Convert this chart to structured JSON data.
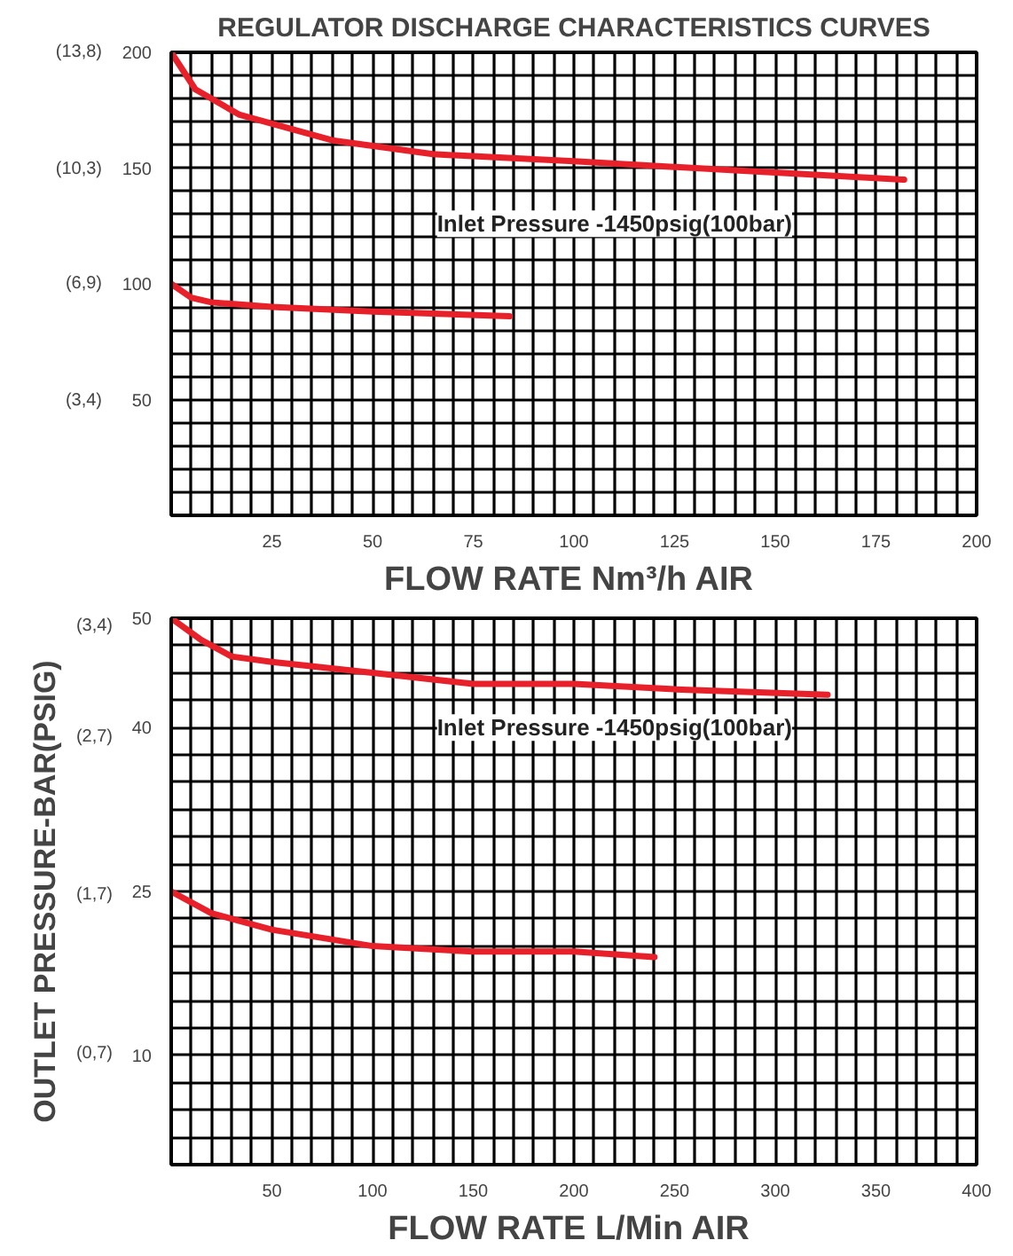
{
  "chart_data": [
    {
      "type": "line",
      "title": "REGULATOR DISCHARGE CHARACTERISTICS CURVES",
      "xlabel": "FLOW RATE  Nm³/h AIR",
      "annotations": [
        "Inlet Pressure -1450psig(100bar)"
      ],
      "grid": true,
      "line_style": "solid",
      "xlim": [
        0,
        200
      ],
      "ylim": [
        0,
        200
      ],
      "y2lim": [
        0,
        13.8
      ],
      "xticks": [
        {
          "value": 5,
          "label": null
        },
        {
          "value": 10,
          "label": null
        },
        {
          "value": 15,
          "label": null
        },
        {
          "value": 20,
          "label": null
        },
        25,
        {
          "value": 30,
          "label": null
        },
        {
          "value": 35,
          "label": null
        },
        {
          "value": 40,
          "label": null
        },
        {
          "value": 45,
          "label": null
        },
        50,
        {
          "value": 55,
          "label": null
        },
        {
          "value": 60,
          "label": null
        },
        {
          "value": 65,
          "label": null
        },
        {
          "value": 70,
          "label": null
        },
        75,
        {
          "value": 80,
          "label": null
        },
        {
          "value": 85,
          "label": null
        },
        {
          "value": 90,
          "label": null
        },
        {
          "value": 95,
          "label": null
        },
        100,
        {
          "value": 105,
          "label": null
        },
        {
          "value": 110,
          "label": null
        },
        {
          "value": 115,
          "label": null
        },
        {
          "value": 120,
          "label": null
        },
        125,
        {
          "value": 130,
          "label": null
        },
        {
          "value": 135,
          "label": null
        },
        {
          "value": 140,
          "label": null
        },
        {
          "value": 145,
          "label": null
        },
        150,
        {
          "value": 155,
          "label": null
        },
        {
          "value": 160,
          "label": null
        },
        {
          "value": 165,
          "label": null
        },
        {
          "value": 170,
          "label": null
        },
        175,
        {
          "value": 180,
          "label": null
        },
        {
          "value": 185,
          "label": null
        },
        {
          "value": 190,
          "label": null
        },
        {
          "value": 195,
          "label": null
        },
        200
      ],
      "yticks": [
        {
          "value": 10,
          "label": null
        },
        {
          "value": 20,
          "label": null
        },
        {
          "value": 30,
          "label": null
        },
        {
          "value": 40,
          "label": null
        },
        50,
        {
          "value": 60,
          "label": null
        },
        {
          "value": 70,
          "label": null
        },
        {
          "value": 80,
          "label": null
        },
        {
          "value": 90,
          "label": null
        },
        100,
        {
          "value": 110,
          "label": null
        },
        {
          "value": 120,
          "label": null
        },
        {
          "value": 130,
          "label": null
        },
        {
          "value": 140,
          "label": null
        },
        150,
        {
          "value": 160,
          "label": null
        },
        {
          "value": 170,
          "label": null
        },
        {
          "value": 180,
          "label": null
        },
        {
          "value": 190,
          "label": null
        },
        200
      ],
      "y2ticks": [
        {
          "value": 3.4,
          "label": "(3,4)"
        },
        {
          "value": 6.9,
          "label": "(6,9)"
        },
        {
          "value": 10.3,
          "label": "(10,3)"
        },
        {
          "value": 13.8,
          "label": "(13,8)"
        }
      ],
      "series": [
        {
          "color": "#e8202a",
          "x": [
            0,
            6,
            17,
            40,
            65,
            100,
            140,
            182
          ],
          "values": [
            200,
            184,
            173,
            162,
            156,
            153,
            149,
            145
          ]
        },
        {
          "color": "#e8202a",
          "x": [
            0,
            5,
            10,
            25,
            50,
            84
          ],
          "values": [
            100,
            94,
            92,
            90,
            88,
            86
          ]
        }
      ]
    },
    {
      "type": "line",
      "xlabel": "FLOW RATE  L/Min AIR",
      "y2label": "OUTLET PRESSURE-BAR(PSIG)",
      "annotations": [
        "Inlet Pressure -1450psig(100bar)"
      ],
      "grid": true,
      "line_style": "solid",
      "xlim": [
        0,
        400
      ],
      "ylim": [
        0,
        50
      ],
      "y2lim": [
        0,
        3.45
      ],
      "xticks": [
        {
          "value": 10,
          "label": null
        },
        {
          "value": 20,
          "label": null
        },
        {
          "value": 30,
          "label": null
        },
        {
          "value": 40,
          "label": null
        },
        50,
        {
          "value": 60,
          "label": null
        },
        {
          "value": 70,
          "label": null
        },
        {
          "value": 80,
          "label": null
        },
        {
          "value": 90,
          "label": null
        },
        100,
        {
          "value": 110,
          "label": null
        },
        {
          "value": 120,
          "label": null
        },
        {
          "value": 130,
          "label": null
        },
        {
          "value": 140,
          "label": null
        },
        150,
        {
          "value": 160,
          "label": null
        },
        {
          "value": 170,
          "label": null
        },
        {
          "value": 180,
          "label": null
        },
        {
          "value": 190,
          "label": null
        },
        200,
        {
          "value": 210,
          "label": null
        },
        {
          "value": 220,
          "label": null
        },
        {
          "value": 230,
          "label": null
        },
        {
          "value": 240,
          "label": null
        },
        250,
        {
          "value": 260,
          "label": null
        },
        {
          "value": 270,
          "label": null
        },
        {
          "value": 280,
          "label": null
        },
        {
          "value": 290,
          "label": null
        },
        300,
        {
          "value": 310,
          "label": null
        },
        {
          "value": 320,
          "label": null
        },
        {
          "value": 330,
          "label": null
        },
        {
          "value": 340,
          "label": null
        },
        350,
        {
          "value": 360,
          "label": null
        },
        {
          "value": 370,
          "label": null
        },
        {
          "value": 380,
          "label": null
        },
        {
          "value": 390,
          "label": null
        },
        400
      ],
      "yticks": [
        {
          "value": 2.5,
          "label": null
        },
        {
          "value": 5,
          "label": null
        },
        {
          "value": 7.5,
          "label": null
        },
        10,
        {
          "value": 12.5,
          "label": null
        },
        {
          "value": 15,
          "label": null
        },
        {
          "value": 17.5,
          "label": null
        },
        {
          "value": 20,
          "label": null
        },
        {
          "value": 22.5,
          "label": null
        },
        25,
        {
          "value": 27.5,
          "label": null
        },
        {
          "value": 30,
          "label": null
        },
        {
          "value": 32.5,
          "label": null
        },
        {
          "value": 35,
          "label": null
        },
        {
          "value": 37.5,
          "label": null
        },
        40,
        {
          "value": 42.5,
          "label": null
        },
        {
          "value": 45,
          "label": null
        },
        {
          "value": 47.5,
          "label": null
        },
        50
      ],
      "y2ticks": [
        {
          "value": 0.7,
          "label": "(0,7)"
        },
        {
          "value": 1.7,
          "label": "(1,7)"
        },
        {
          "value": 2.7,
          "label": "(2,7)"
        },
        {
          "value": 3.4,
          "label": "(3,4)"
        }
      ],
      "series": [
        {
          "color": "#e8202a",
          "x": [
            0,
            15,
            30,
            50,
            100,
            150,
            200,
            250,
            326
          ],
          "values": [
            50,
            48,
            46.5,
            46,
            45,
            44,
            44,
            43.5,
            43
          ]
        },
        {
          "color": "#e8202a",
          "x": [
            0,
            20,
            50,
            100,
            150,
            200,
            240
          ],
          "values": [
            25,
            23,
            21.5,
            20,
            19.5,
            19.5,
            19
          ]
        }
      ]
    }
  ]
}
